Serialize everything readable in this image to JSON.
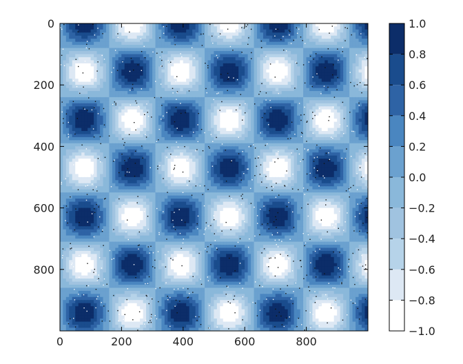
{
  "chart_data": {
    "type": "heatmap",
    "title": "",
    "xlabel": "",
    "ylabel": "",
    "x_range": [
      0,
      1000
    ],
    "y_range": [
      0,
      1000
    ],
    "y_inverted": true,
    "x_ticks": [
      0,
      200,
      400,
      600,
      800
    ],
    "x_tick_labels": [
      "0",
      "200",
      "400",
      "600",
      "800"
    ],
    "y_ticks": [
      0,
      200,
      400,
      600,
      800
    ],
    "y_tick_labels": [
      "0",
      "200",
      "400",
      "600",
      "800"
    ],
    "field": "sin(x/50) * cos(y/50)",
    "field_period": 314.16,
    "grid": false,
    "colorbar": {
      "range": [
        -1.0,
        1.0
      ],
      "levels": [
        -1.0,
        -0.8,
        -0.6,
        -0.4,
        -0.2,
        0.0,
        0.2,
        0.4,
        0.6,
        0.8,
        1.0
      ],
      "tick_labels": [
        "−1.0",
        "−0.8",
        "−0.6",
        "−0.4",
        "−0.2",
        "0.0",
        "0.2",
        "0.4",
        "0.6",
        "0.8",
        "1.0"
      ],
      "band_colors": [
        "#ffffff",
        "#dde8f4",
        "#b6d3e9",
        "#a0c3e0",
        "#8ab8da",
        "#6ba1cf",
        "#4a86c0",
        "#2e63a5",
        "#1a4c8d",
        "#0c2d69"
      ],
      "placement": "right"
    },
    "noise": "random black and white speckle dots over the field"
  }
}
